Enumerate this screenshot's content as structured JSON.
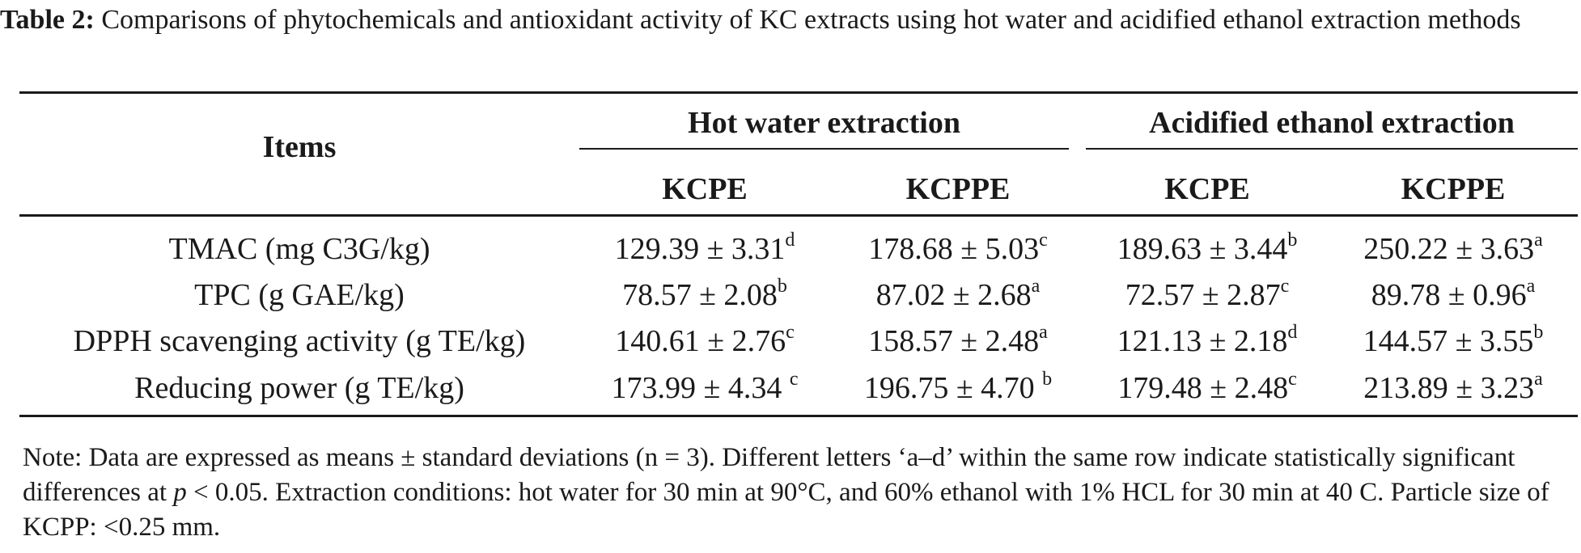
{
  "caption": {
    "label": "Table 2:",
    "text": "Comparisons of phytochemicals and antioxidant activity of KC extracts using hot water and acidified ethanol extraction methods"
  },
  "header": {
    "items": "Items",
    "groups": [
      "Hot water extraction",
      "Acidified ethanol extraction"
    ],
    "subcols": [
      "KCPE",
      "KCPPE",
      "KCPE",
      "KCPPE"
    ]
  },
  "rows": [
    {
      "item": "TMAC (mg C3G/kg)",
      "cells": [
        {
          "value": "129.39 ± 3.31",
          "sig": "d"
        },
        {
          "value": "178.68 ± 5.03",
          "sig": "c"
        },
        {
          "value": "189.63 ± 3.44",
          "sig": "b"
        },
        {
          "value": "250.22 ± 3.63",
          "sig": "a"
        }
      ]
    },
    {
      "item": "TPC (g GAE/kg)",
      "cells": [
        {
          "value": "78.57 ± 2.08",
          "sig": "b"
        },
        {
          "value": "87.02 ± 2.68",
          "sig": "a"
        },
        {
          "value": "72.57 ± 2.87",
          "sig": "c"
        },
        {
          "value": "89.78 ± 0.96",
          "sig": "a"
        }
      ]
    },
    {
      "item": "DPPH scavenging activity (g TE/kg)",
      "cells": [
        {
          "value": "140.61 ± 2.76",
          "sig": "c"
        },
        {
          "value": "158.57 ± 2.48",
          "sig": "a"
        },
        {
          "value": "121.13 ± 2.18",
          "sig": "d"
        },
        {
          "value": "144.57 ± 3.55",
          "sig": "b"
        }
      ]
    },
    {
      "item": "Reducing power (g TE/kg)",
      "cells": [
        {
          "value": "173.99 ± 4.34 ",
          "sig": "c"
        },
        {
          "value": "196.75 ± 4.70 ",
          "sig": "b"
        },
        {
          "value": "179.48 ± 2.48",
          "sig": "c"
        },
        {
          "value": "213.89 ± 3.23",
          "sig": "a"
        }
      ]
    }
  ],
  "note": {
    "part1": "Note: Data are expressed as means ± standard deviations (n = 3). Different letters ‘a–d’ within the same row indicate statistically significant differences at ",
    "p": "p",
    "part2": " < 0.05. Extraction conditions: hot water for 30 min at 90°C, and 60% ethanol with 1% HCL for 30 min at 40 C. Particle size of KCPP: <0.25 mm."
  }
}
